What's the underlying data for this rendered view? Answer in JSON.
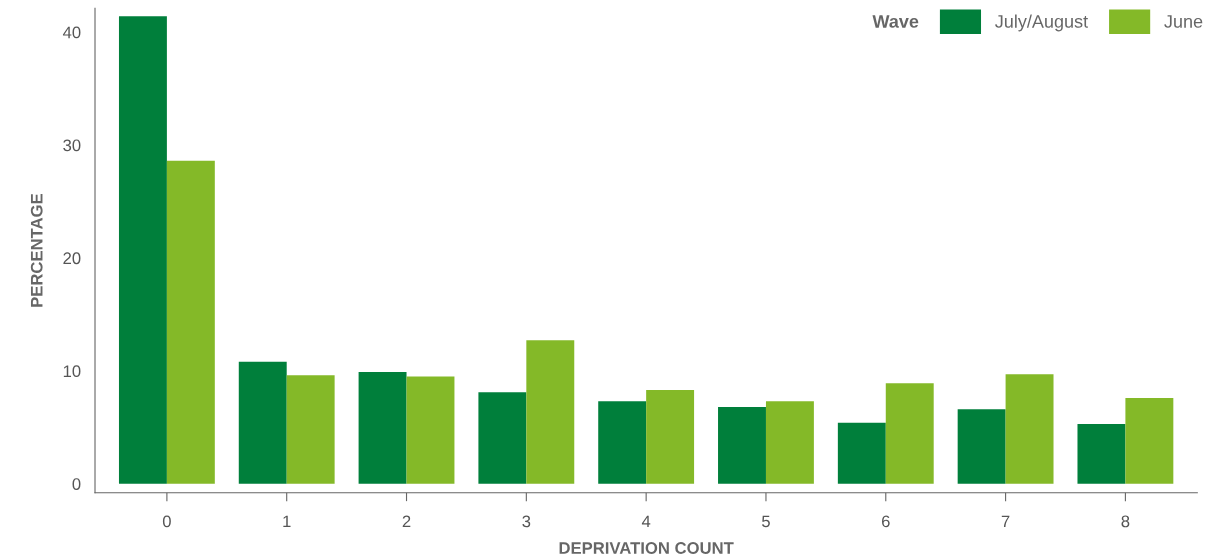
{
  "chart_data": {
    "type": "bar",
    "xlabel": "DEPRIVATION COUNT",
    "ylabel": "PERCENTAGE",
    "legend_title": "Wave",
    "categories": [
      "0",
      "1",
      "2",
      "3",
      "4",
      "5",
      "6",
      "7",
      "8"
    ],
    "series": [
      {
        "name": "July/August",
        "color": "#007f3b",
        "values": [
          41.4,
          10.8,
          9.9,
          8.1,
          7.3,
          6.8,
          5.4,
          6.6,
          5.3
        ]
      },
      {
        "name": "June",
        "color": "#84b928",
        "values": [
          28.6,
          9.6,
          9.5,
          12.7,
          8.3,
          7.3,
          8.9,
          9.7,
          7.6
        ]
      }
    ],
    "ylim": [
      -0.8,
      42.1
    ],
    "yticks": [
      0,
      10,
      20,
      30,
      40
    ],
    "grid": false,
    "legend": "top right"
  }
}
